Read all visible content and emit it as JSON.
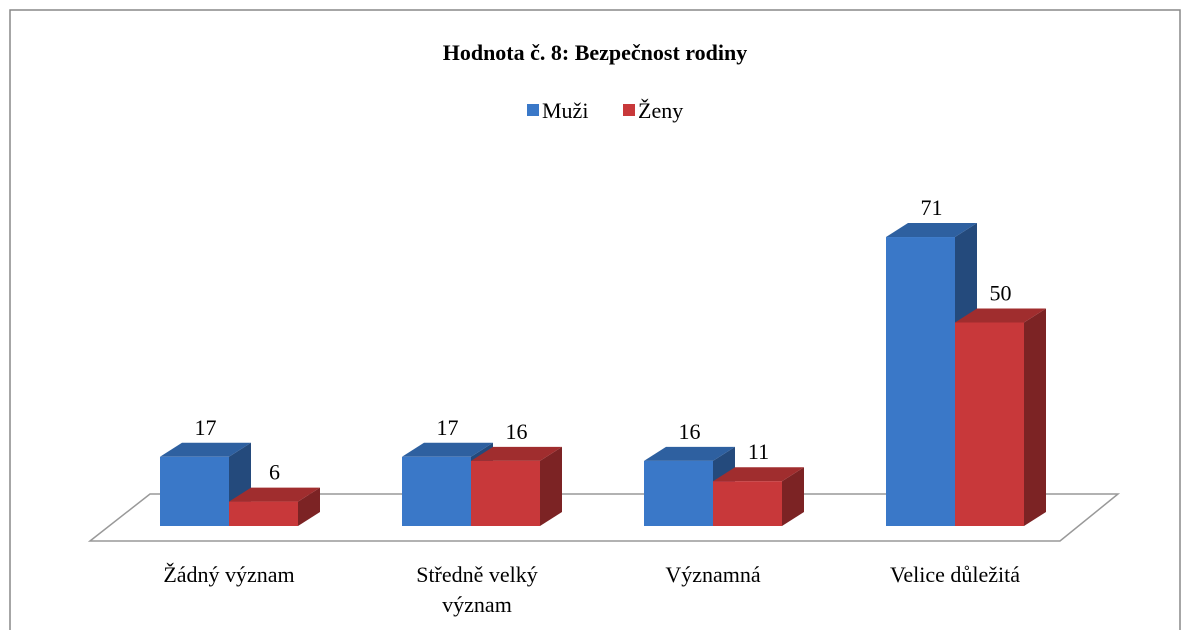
{
  "chart_data": {
    "type": "bar3d",
    "title": "Hodnota č. 8: Bezpečnost rodiny",
    "categories": [
      "Žádný význam",
      "Středně velký význam",
      "Významná",
      "Velice důležitá"
    ],
    "series": [
      {
        "name": "Muži",
        "color": "#3a78c8",
        "values": [
          17,
          17,
          16,
          71
        ]
      },
      {
        "name": "Ženy",
        "color": "#c8383a",
        "values": [
          6,
          16,
          11,
          50
        ]
      }
    ],
    "legend": "top"
  }
}
